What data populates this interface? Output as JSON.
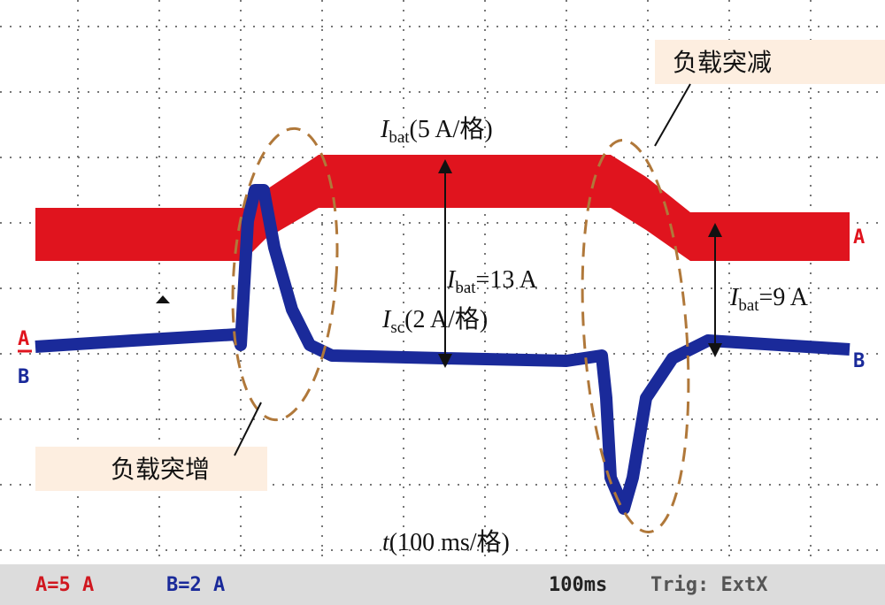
{
  "annotations": {
    "load_drop": "负载突减",
    "load_rise": "负载突增"
  },
  "labels": {
    "ibat_scale": {
      "symbol": "I",
      "sub": "bat",
      "text": "(5 A/格)"
    },
    "ibat_step": {
      "symbol": "I",
      "sub": "bat",
      "text": "=13 A"
    },
    "isc_scale": {
      "symbol": "I",
      "sub": "sc",
      "text": "(2 A/格)"
    },
    "ibat_after": {
      "symbol": "I",
      "sub": "bat",
      "text": "=9 A"
    },
    "time_scale": {
      "symbol": "t",
      "text": "(100 ms/格)"
    }
  },
  "markers": {
    "trace_a": "A",
    "trace_b": "B",
    "left_a": "A",
    "left_b": "B"
  },
  "status_bar": {
    "channel_a": "A=5 A",
    "channel_b": "B=2 A",
    "timebase": "100ms",
    "trigger": "Trig: ExtX"
  }
}
